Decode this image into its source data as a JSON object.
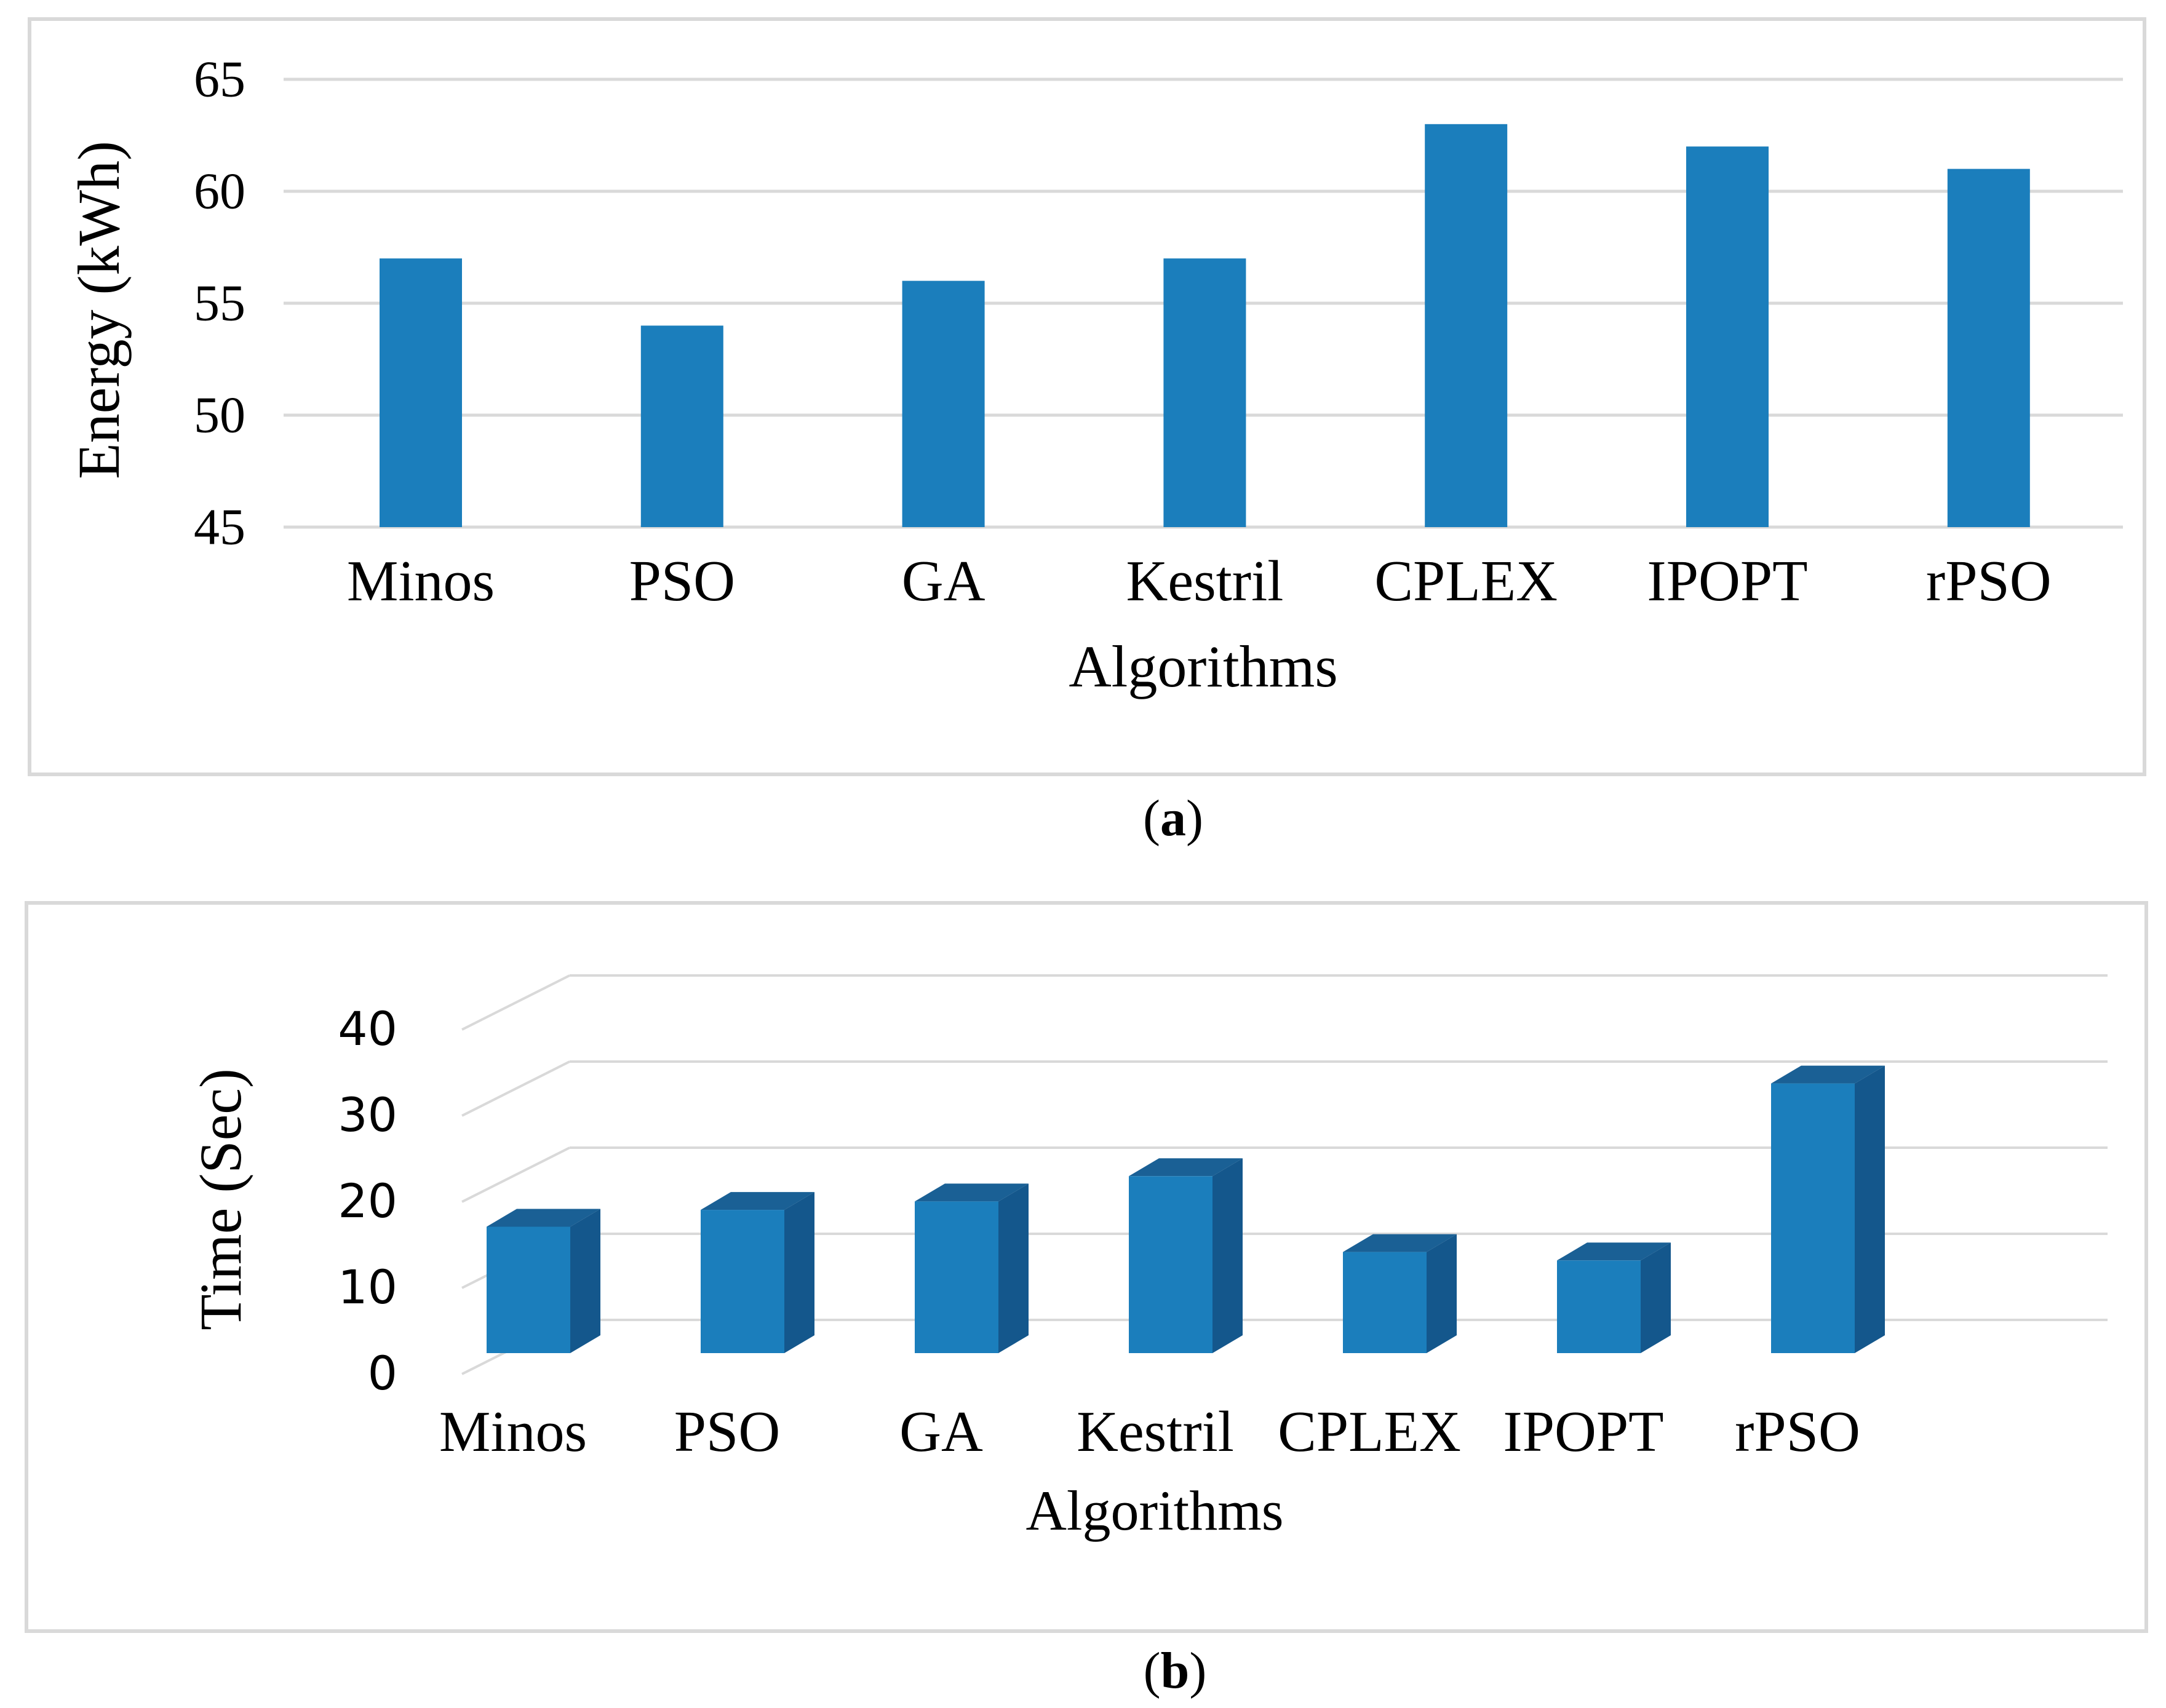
{
  "figure": {
    "background": "#ffffff",
    "panel_border_color": "#d9d9d9",
    "captions": {
      "open": "(",
      "a_letter": "a",
      "b_letter": "b",
      "close": ")"
    }
  },
  "chart_data": [
    {
      "id": "a",
      "type": "bar",
      "style": "flat",
      "title": "",
      "xlabel": "Algorithms",
      "ylabel": "Energy (kWh)",
      "categories": [
        "Minos",
        "PSO",
        "GA",
        "Kestril",
        "CPLEX",
        "IPOPT",
        "rPSO"
      ],
      "values": [
        57,
        54,
        56,
        57,
        63,
        62,
        61
      ],
      "ylim": [
        45,
        65
      ],
      "yticks": [
        45,
        50,
        55,
        60,
        65
      ],
      "grid": true,
      "legend": "none",
      "bar_color": "#1b7ebc",
      "gridline_color": "#d9d9d9",
      "text_color": "#000000"
    },
    {
      "id": "b",
      "type": "bar",
      "style": "3d",
      "title": "",
      "xlabel": "Algorithms",
      "ylabel": "Time (Sec)",
      "categories": [
        "Minos",
        "PSO",
        "GA",
        "Kestril",
        "CPLEX",
        "IPOPT",
        "rPSO"
      ],
      "values": [
        15,
        17,
        18,
        21,
        12,
        11,
        32
      ],
      "ylim": [
        0,
        40
      ],
      "yticks": [
        0,
        10,
        20,
        30,
        40
      ],
      "grid": true,
      "legend": "none",
      "bar_color_front": "#1b7ebc",
      "bar_color_top": "#1a6095",
      "bar_color_side": "#14578c",
      "gridline_color": "#d9d9d9",
      "text_color": "#000000"
    }
  ]
}
